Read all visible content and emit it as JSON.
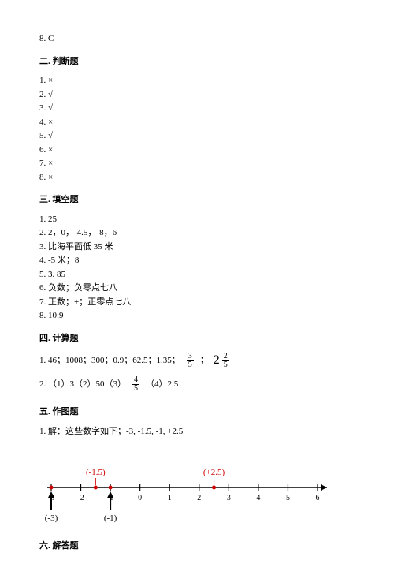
{
  "top_answer": "8. C",
  "section2": {
    "title": "二. 判断题",
    "items": [
      "1. ×",
      "2. √",
      "3. √",
      "4. ×",
      "5. √",
      "6. ×",
      "7. ×",
      "8. ×"
    ]
  },
  "section3": {
    "title": "三. 填空题",
    "items": [
      "1. 25",
      "2. 2，0，-4.5，-8，6",
      "3. 比海平面低 35 米",
      "4. -5 米；8",
      "5. 3. 85",
      "6. 负数；负零点七八",
      "7. 正数；+；正零点七八",
      "8. 10:9"
    ]
  },
  "section4": {
    "title": "四. 计算题",
    "line1_prefix": "1. 46；1008；300；0.9；62.5；1.35；",
    "frac1_num": "3",
    "frac1_den": "5",
    "sep": "；",
    "mixed_whole": "2",
    "mixed_num": "2",
    "mixed_den": "5",
    "line2_a": "2. （1）3（2）50（3）",
    "frac2_num": "4",
    "frac2_den": "5",
    "line2_b": "（4）2.5"
  },
  "section5": {
    "title": "五. 作图题",
    "text": "1. 解：这些数字如下；-3, -1.5, -1, +2.5",
    "numberline": {
      "ticks": [
        -3,
        -2,
        -1,
        0,
        1,
        2,
        3,
        4,
        5,
        6
      ],
      "marks": [
        {
          "value": -3,
          "label": "(-3)",
          "label_color": "#000000",
          "arrow": true,
          "top": false
        },
        {
          "value": -1.5,
          "label": "(-1.5)",
          "label_color": "#d00000",
          "arrow": false,
          "top": true
        },
        {
          "value": -1,
          "label": "(-1)",
          "label_color": "#000000",
          "arrow": true,
          "top": false
        },
        {
          "value": 2.5,
          "label": "(+2.5)",
          "label_color": "#d00000",
          "arrow": false,
          "top": true
        }
      ],
      "line_color": "#000000",
      "dot_color": "#d00000",
      "tick_fontsize": 10
    }
  },
  "section6": {
    "title": "六. 解答题"
  }
}
